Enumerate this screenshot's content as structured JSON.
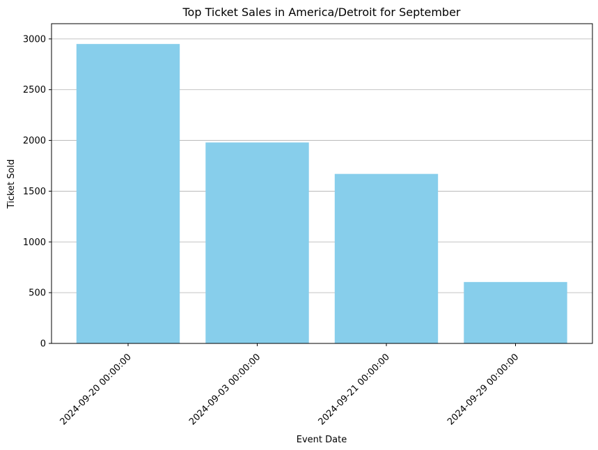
{
  "chart_data": {
    "type": "bar",
    "title": "Top Ticket Sales in America/Detroit for September",
    "xlabel": "Event Date",
    "ylabel": "Ticket Sold",
    "categories": [
      "2024-09-20 00:00:00",
      "2024-09-03 00:00:00",
      "2024-09-21 00:00:00",
      "2024-09-29 00:00:00"
    ],
    "values": [
      2950,
      1980,
      1670,
      605
    ],
    "ylim": [
      0,
      3150
    ],
    "yticks": [
      0,
      500,
      1000,
      1500,
      2000,
      2500,
      3000
    ],
    "ytick_labels": [
      "0",
      "500",
      "1000",
      "1500",
      "2000",
      "2500",
      "3000"
    ],
    "grid": "y",
    "colors": {
      "bar": "#87ceeb",
      "grid": "#b0b0b0",
      "axis": "#000000"
    }
  }
}
